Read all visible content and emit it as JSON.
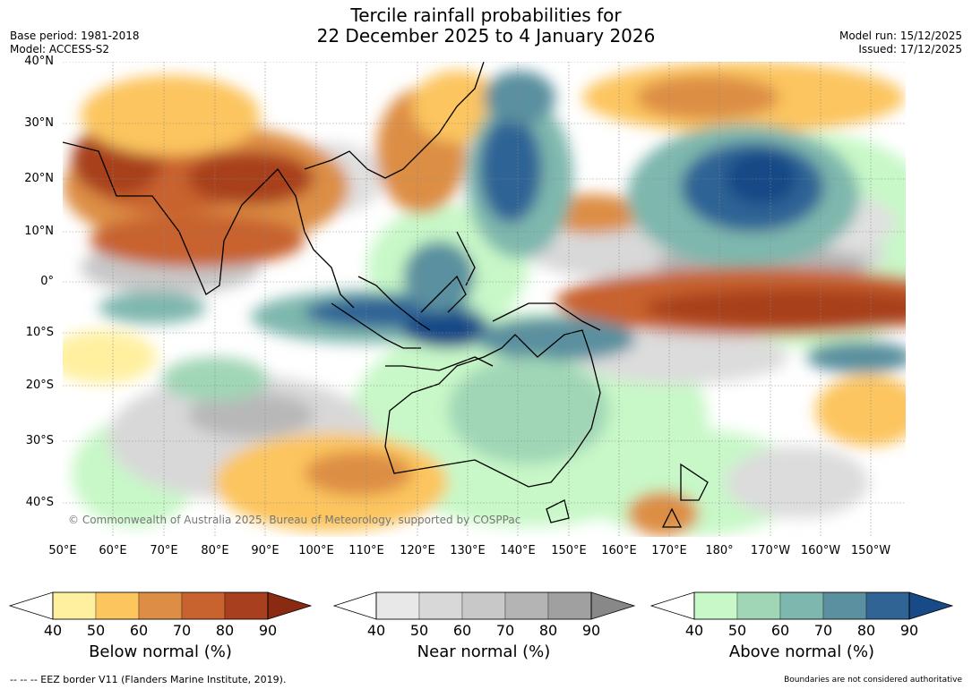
{
  "title_line1": "Tercile rainfall probabilities for",
  "title_line2": "22 December 2025 to 4 January 2026",
  "base_period": "Base period: 1981-2018",
  "model": "Model: ACCESS-S2",
  "model_run": "Model run: 15/12/2025",
  "issued": "Issued: 17/12/2025",
  "copyright": "© Commonwealth of Australia 2025, Bureau of Meteorology, supported by COSPPac",
  "lat_labels": [
    "40°N",
    "30°N",
    "20°N",
    "10°N",
    "0°",
    "10°S",
    "20°S",
    "30°S",
    "40°S"
  ],
  "lon_labels": [
    "50°E",
    "60°E",
    "70°E",
    "80°E",
    "90°E",
    "100°E",
    "110°E",
    "120°E",
    "130°E",
    "140°E",
    "150°E",
    "160°E",
    "170°E",
    "180°",
    "170°W",
    "160°W",
    "150°W"
  ],
  "colorbars": {
    "below": {
      "title": "Below normal (%)",
      "ticks": [
        "40",
        "50",
        "60",
        "70",
        "80",
        "90"
      ],
      "colors": [
        "#fff0a0",
        "#fcc55e",
        "#dd8e44",
        "#c8622e",
        "#a8401f",
        "#8a2a12"
      ]
    },
    "near": {
      "title": "Near normal (%)",
      "ticks": [
        "40",
        "50",
        "60",
        "70",
        "80",
        "90"
      ],
      "colors": [
        "#e8e8e8",
        "#d8d8d8",
        "#c8c8c8",
        "#b4b4b4",
        "#a0a0a0",
        "#888888"
      ]
    },
    "above": {
      "title": "Above normal (%)",
      "ticks": [
        "40",
        "50",
        "60",
        "70",
        "80",
        "90"
      ],
      "colors": [
        "#c8f8c8",
        "#a0d6b6",
        "#7eb7ad",
        "#5a909f",
        "#2f6495",
        "#174a86"
      ]
    }
  },
  "footer_left": "--  --  -- EEZ border V11 (Flanders Marine Institute, 2019).",
  "footer_right": "Boundaries are not considered authoritative"
}
